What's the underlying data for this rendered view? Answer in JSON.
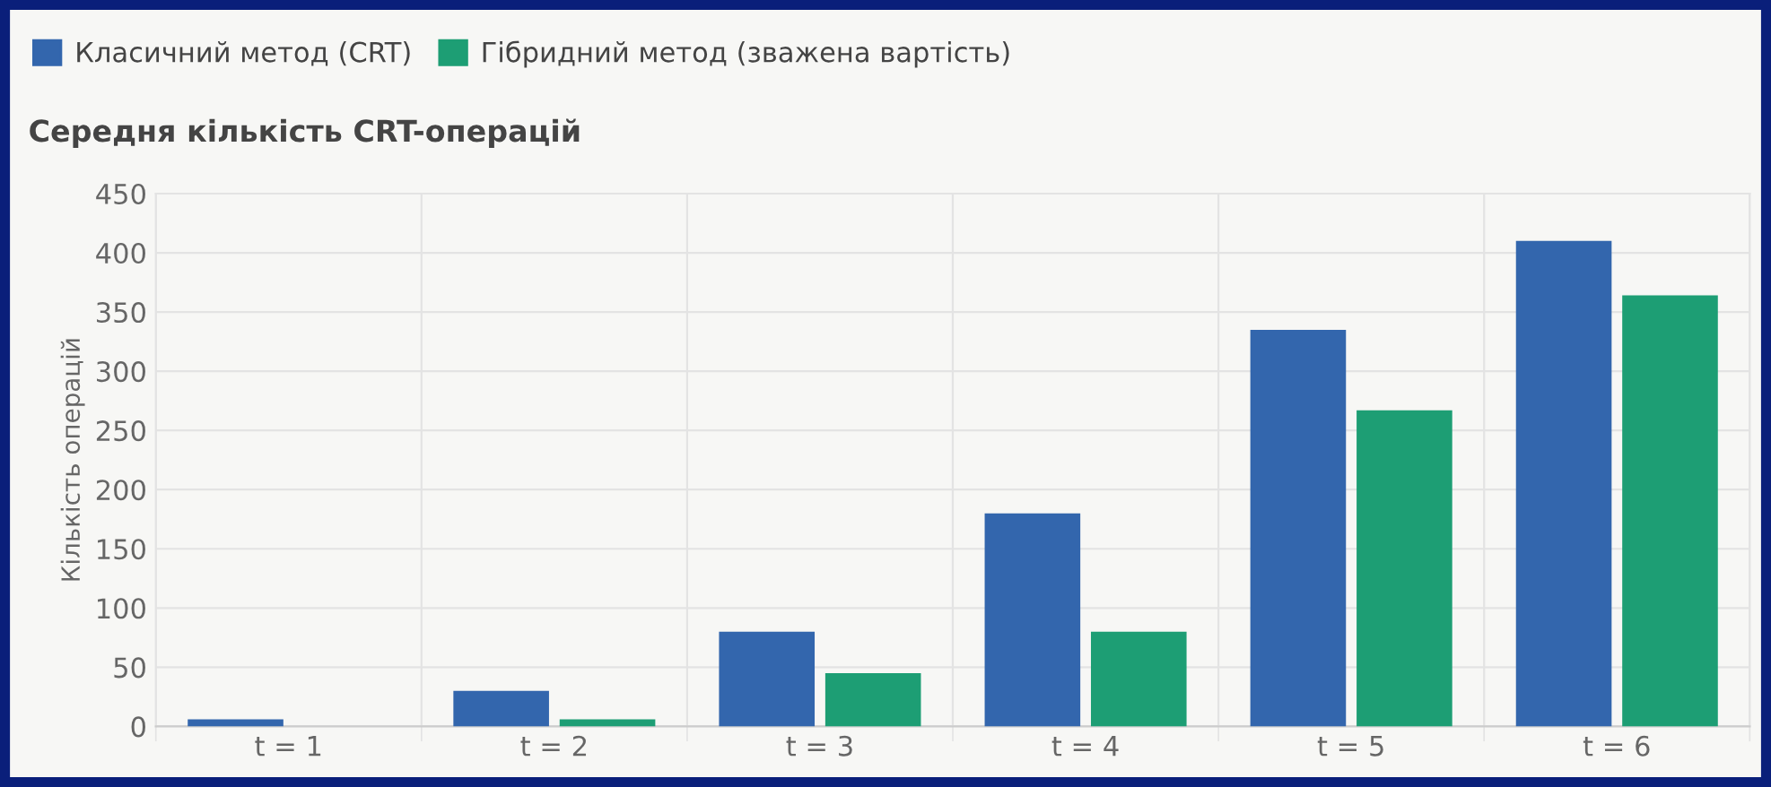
{
  "chart_data": {
    "type": "bar",
    "title": "Середня кількість CRT-операцій",
    "ylabel": "Кількість операцій",
    "categories": [
      "t = 1",
      "t = 2",
      "t = 3",
      "t = 4",
      "t = 5",
      "t = 6"
    ],
    "series": [
      {
        "name": "Класичний метод (CRT)",
        "color": "#3366ad",
        "values": [
          6,
          30,
          80,
          180,
          335,
          410
        ]
      },
      {
        "name": "Гібридний метод (зважена вартість)",
        "color": "#1d9e74",
        "values": [
          0,
          6,
          45,
          80,
          267,
          364
        ]
      }
    ],
    "ylim": [
      0,
      450
    ],
    "yticks": [
      0,
      50,
      100,
      150,
      200,
      250,
      300,
      350,
      400,
      450
    ],
    "grid": true,
    "legend": "top left"
  }
}
